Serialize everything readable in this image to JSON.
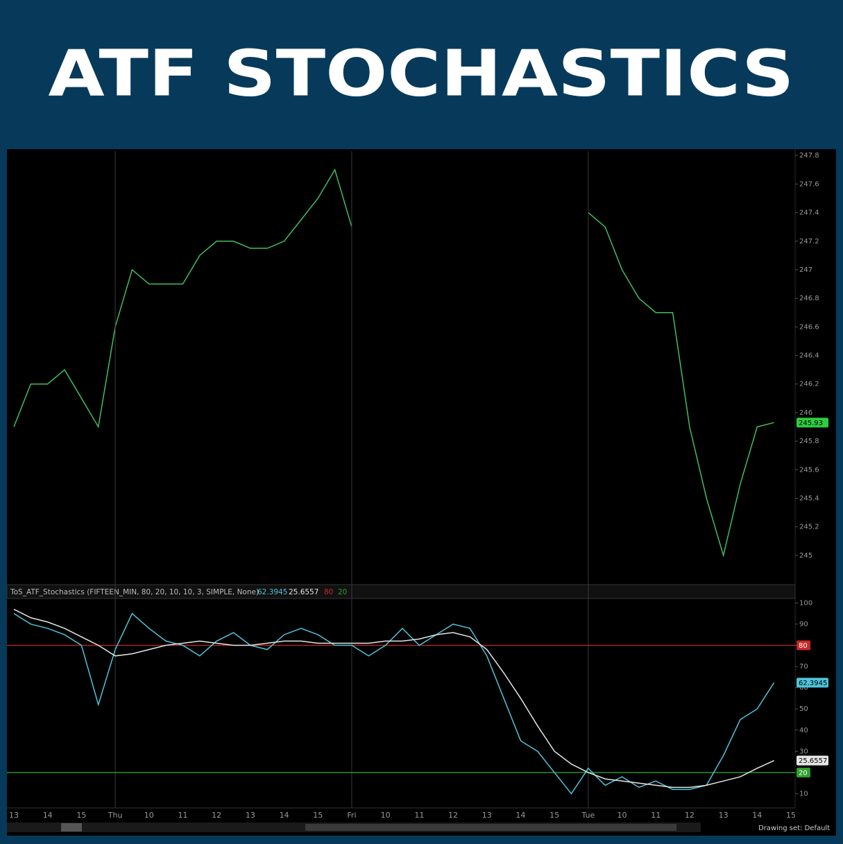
{
  "header": {
    "title": "ATF STOCHASTICS"
  },
  "footer_text": "Drawing set: Default",
  "chart_data": [
    {
      "type": "line",
      "color": "#3fbf5f",
      "values": [
        245.9,
        246.2,
        246.2,
        246.3,
        246.1,
        245.9,
        246.6,
        247.0,
        246.9,
        246.9,
        246.9,
        247.1,
        247.2,
        247.2,
        247.15,
        247.15,
        247.2,
        247.35,
        247.5,
        247.7,
        247.3,
        null,
        null,
        null,
        null,
        null,
        null,
        null,
        null,
        null,
        null,
        null,
        null,
        null,
        247.4,
        247.3,
        247.0,
        246.8,
        246.7,
        246.7,
        245.9,
        245.4,
        245.0,
        245.5,
        245.9,
        245.93,
        null
      ],
      "ylim": [
        244.81,
        247.83
      ],
      "yticks": [
        245,
        245.2,
        245.4,
        245.6,
        245.8,
        246,
        246.2,
        246.4,
        246.6,
        246.8,
        247,
        247.2,
        247.4,
        247.6,
        247.8
      ],
      "last_color": "#2ecc40"
    },
    {
      "type": "line",
      "legend_title": "ToS_ATF_Stochastics (FIFTEEN_MIN, 80, 20, 10, 10, 3, SIMPLE, None)",
      "categories": [
        "13",
        null,
        "14",
        null,
        "15",
        null,
        "Thu",
        null,
        "10",
        null,
        "11",
        null,
        "12",
        null,
        "13",
        null,
        "14",
        null,
        "15",
        null,
        "Fri",
        null,
        "10",
        null,
        "11",
        null,
        "12",
        null,
        "13",
        null,
        "14",
        null,
        "15",
        null,
        "Tue",
        null,
        "10",
        null,
        "11",
        null,
        "12",
        null,
        "13",
        null,
        "14",
        null,
        "15"
      ],
      "series": [
        {
          "color": "#4fc3d9",
          "values": [
            95,
            90,
            88,
            85,
            80,
            52,
            78,
            95,
            88,
            82,
            80,
            75,
            82,
            86,
            80,
            78,
            85,
            88,
            85,
            80,
            80,
            75,
            80,
            88,
            80,
            85,
            90,
            88,
            75,
            55,
            35,
            30,
            20,
            10,
            22,
            14,
            18,
            13,
            16,
            12,
            12,
            14,
            28,
            45,
            50,
            62.3945,
            null
          ]
        },
        {
          "color": "#e6e6e6",
          "values": [
            97,
            93,
            91,
            88,
            84,
            80,
            75,
            76,
            78,
            80,
            81,
            82,
            81,
            80,
            80,
            81,
            82,
            82,
            81,
            81,
            81,
            81,
            82,
            82,
            83,
            85,
            86,
            84,
            78,
            67,
            55,
            42,
            30,
            24,
            20,
            17,
            16,
            15,
            14,
            13,
            13,
            14,
            16,
            18,
            22,
            25.6557,
            null
          ]
        }
      ],
      "hlines": [
        {
          "value": 80,
          "color": "#c62828"
        },
        {
          "value": 20,
          "color": "#2e9e2e"
        }
      ],
      "ylim": [
        3.3,
        101.1
      ],
      "yticks": [
        10,
        20,
        30,
        40,
        50,
        60,
        70,
        80,
        90,
        100
      ]
    }
  ]
}
